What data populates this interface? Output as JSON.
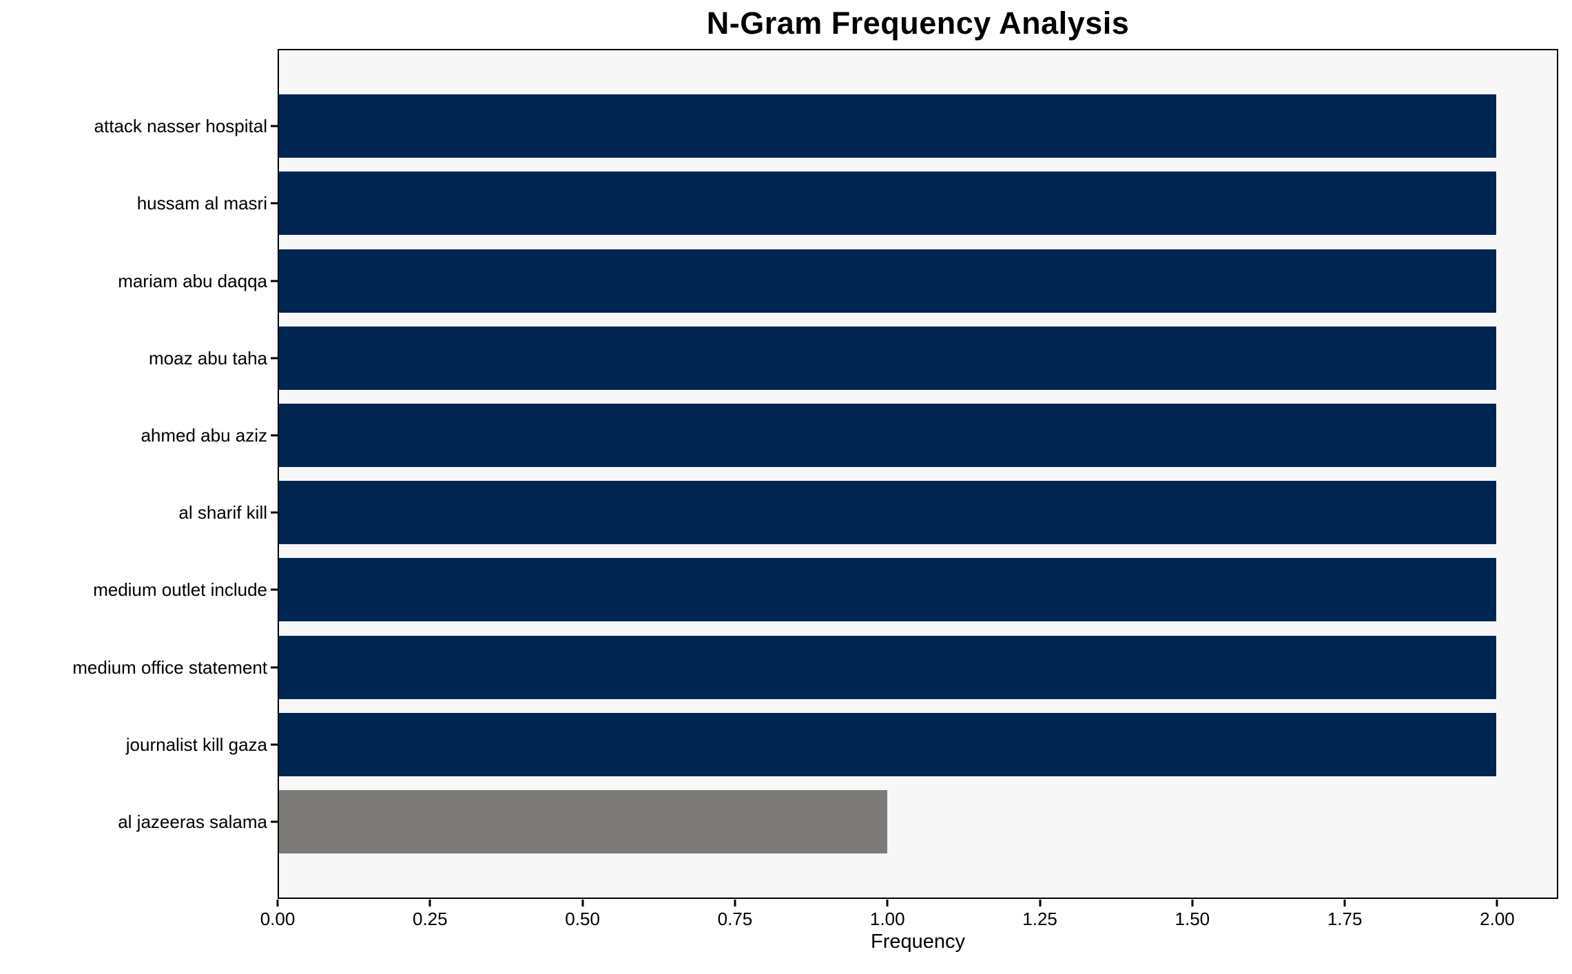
{
  "chart_data": {
    "type": "bar",
    "orientation": "horizontal",
    "title": "N-Gram Frequency Analysis",
    "xlabel": "Frequency",
    "ylabel": "",
    "categories": [
      "attack nasser hospital",
      "hussam al masri",
      "mariam abu daqqa",
      "moaz abu taha",
      "ahmed abu aziz",
      "al sharif kill",
      "medium outlet include",
      "medium office statement",
      "journalist kill gaza",
      "al jazeeras salama"
    ],
    "values": [
      2.0,
      2.0,
      2.0,
      2.0,
      2.0,
      2.0,
      2.0,
      2.0,
      2.0,
      1.0
    ],
    "bar_colors": [
      "#002550",
      "#002550",
      "#002550",
      "#002550",
      "#002550",
      "#002550",
      "#002550",
      "#002550",
      "#002550",
      "#7c7b78"
    ],
    "xlim": [
      0,
      2.1
    ],
    "xticks": [
      {
        "value": 0.0,
        "label": "0.00"
      },
      {
        "value": 0.25,
        "label": "0.25"
      },
      {
        "value": 0.5,
        "label": "0.50"
      },
      {
        "value": 0.75,
        "label": "0.75"
      },
      {
        "value": 1.0,
        "label": "1.00"
      },
      {
        "value": 1.25,
        "label": "1.25"
      },
      {
        "value": 1.5,
        "label": "1.50"
      },
      {
        "value": 1.75,
        "label": "1.75"
      },
      {
        "value": 2.0,
        "label": "2.00"
      }
    ],
    "grid": false,
    "legend": false,
    "colors": {
      "bar_primary": "#002550",
      "bar_highlight": "#7c7b78",
      "plot_background": "#f7f7f7",
      "figure_background": "#ffffff",
      "axis": "#000000"
    }
  }
}
